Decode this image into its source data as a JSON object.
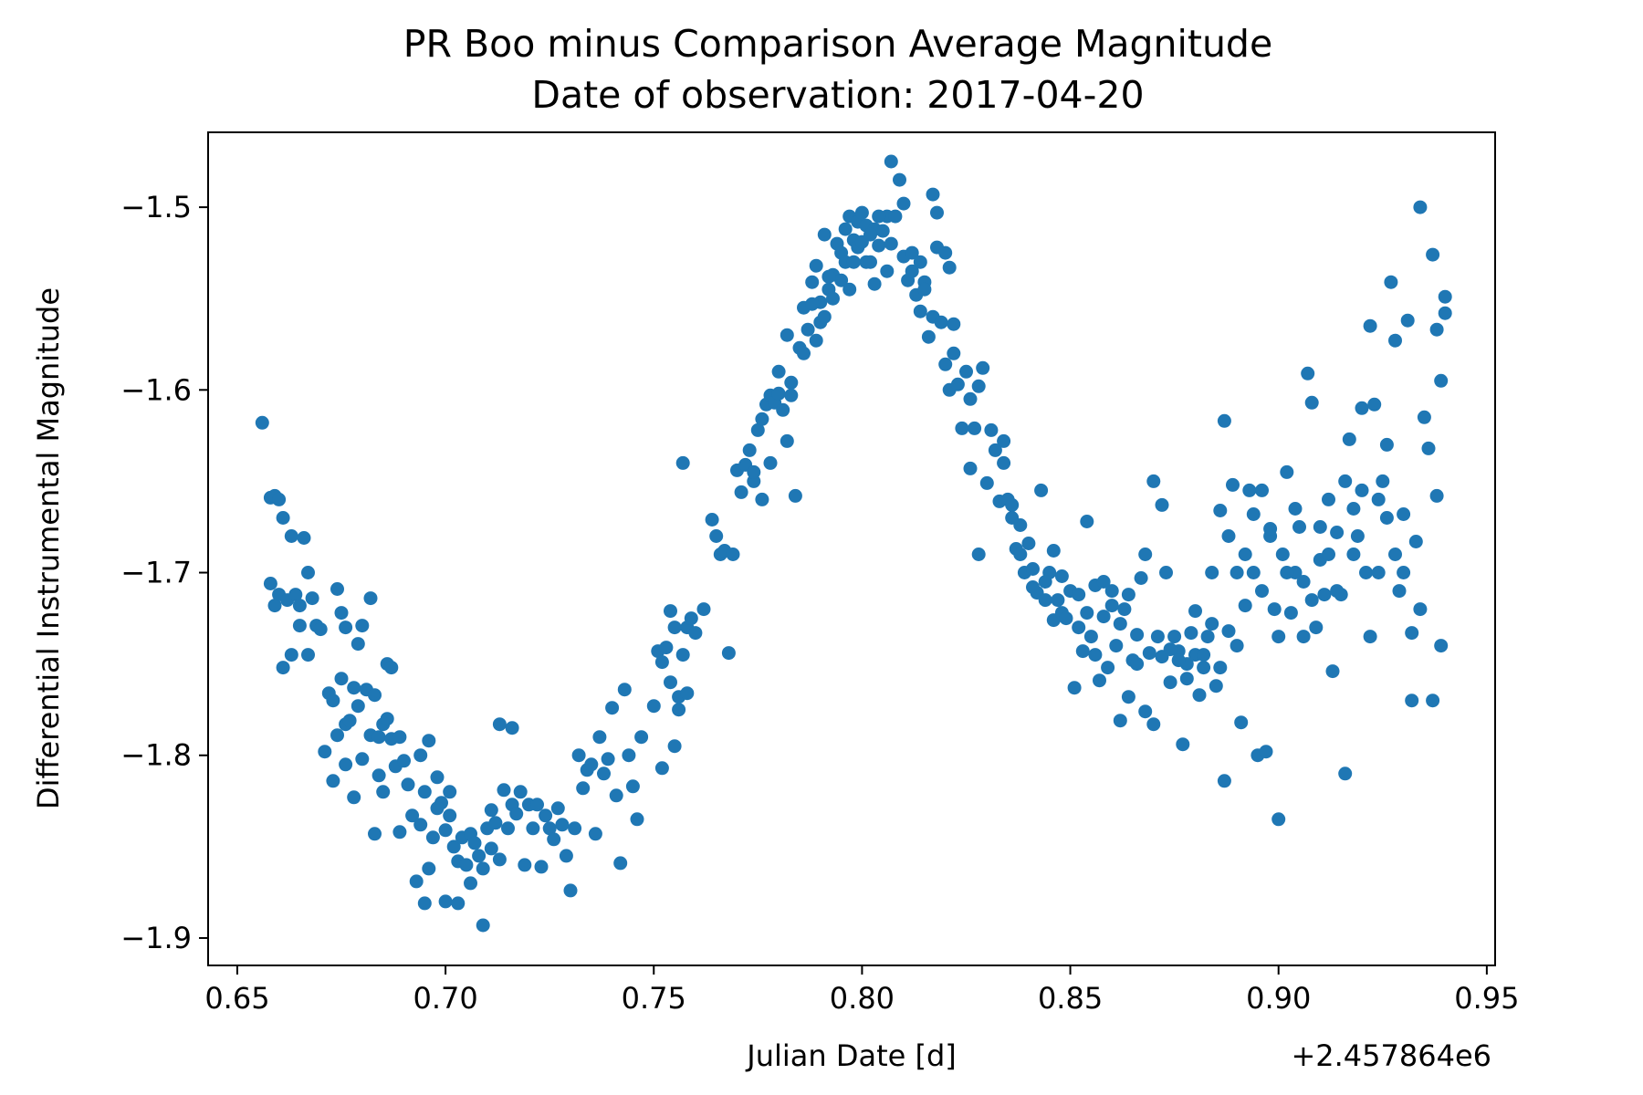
{
  "chart_data": {
    "type": "scatter",
    "title": "PR Boo minus Comparison Average Magnitude",
    "subtitle": "Date of observation: 2017-04-20",
    "xlabel": "Julian Date [d]",
    "ylabel": "Differential Instrumental Magnitude",
    "x_offset_label": "+2.457864e6",
    "xlim": [
      0.643,
      0.952
    ],
    "ylim": [
      -1.459,
      -1.915
    ],
    "y_inverted": true,
    "grid": false,
    "marker_color": "#1f77b4",
    "x_ticks": [
      0.65,
      0.7,
      0.75,
      0.8,
      0.85,
      0.9,
      0.95
    ],
    "x_tick_labels": [
      "0.65",
      "0.70",
      "0.75",
      "0.80",
      "0.85",
      "0.90",
      "0.95"
    ],
    "y_ticks": [
      -1.5,
      -1.6,
      -1.7,
      -1.8,
      -1.9
    ],
    "y_tick_labels": [
      "−1.5",
      "−1.6",
      "−1.7",
      "−1.8",
      "−1.9"
    ],
    "points": [
      [
        0.656,
        -1.618
      ],
      [
        0.658,
        -1.659
      ],
      [
        0.659,
        -1.658
      ],
      [
        0.66,
        -1.66
      ],
      [
        0.661,
        -1.67
      ],
      [
        0.663,
        -1.68
      ],
      [
        0.666,
        -1.681
      ],
      [
        0.658,
        -1.706
      ],
      [
        0.659,
        -1.718
      ],
      [
        0.66,
        -1.712
      ],
      [
        0.662,
        -1.715
      ],
      [
        0.664,
        -1.712
      ],
      [
        0.665,
        -1.718
      ],
      [
        0.667,
        -1.7
      ],
      [
        0.668,
        -1.714
      ],
      [
        0.661,
        -1.752
      ],
      [
        0.663,
        -1.745
      ],
      [
        0.665,
        -1.729
      ],
      [
        0.667,
        -1.745
      ],
      [
        0.669,
        -1.729
      ],
      [
        0.67,
        -1.731
      ],
      [
        0.671,
        -1.798
      ],
      [
        0.672,
        -1.766
      ],
      [
        0.673,
        -1.77
      ],
      [
        0.674,
        -1.789
      ],
      [
        0.675,
        -1.758
      ],
      [
        0.676,
        -1.783
      ],
      [
        0.677,
        -1.781
      ],
      [
        0.678,
        -1.763
      ],
      [
        0.673,
        -1.814
      ],
      [
        0.676,
        -1.805
      ],
      [
        0.678,
        -1.823
      ],
      [
        0.679,
        -1.773
      ],
      [
        0.68,
        -1.802
      ],
      [
        0.681,
        -1.764
      ],
      [
        0.682,
        -1.789
      ],
      [
        0.683,
        -1.767
      ],
      [
        0.684,
        -1.79
      ],
      [
        0.685,
        -1.783
      ],
      [
        0.686,
        -1.78
      ],
      [
        0.687,
        -1.791
      ],
      [
        0.674,
        -1.709
      ],
      [
        0.675,
        -1.722
      ],
      [
        0.676,
        -1.73
      ],
      [
        0.679,
        -1.739
      ],
      [
        0.68,
        -1.729
      ],
      [
        0.682,
        -1.714
      ],
      [
        0.683,
        -1.843
      ],
      [
        0.684,
        -1.811
      ],
      [
        0.686,
        -1.75
      ],
      [
        0.687,
        -1.752
      ],
      [
        0.685,
        -1.82
      ],
      [
        0.688,
        -1.806
      ],
      [
        0.689,
        -1.842
      ],
      [
        0.689,
        -1.79
      ],
      [
        0.69,
        -1.803
      ],
      [
        0.691,
        -1.816
      ],
      [
        0.692,
        -1.833
      ],
      [
        0.693,
        -1.869
      ],
      [
        0.694,
        -1.838
      ],
      [
        0.694,
        -1.8
      ],
      [
        0.695,
        -1.82
      ],
      [
        0.696,
        -1.862
      ],
      [
        0.696,
        -1.792
      ],
      [
        0.697,
        -1.845
      ],
      [
        0.698,
        -1.812
      ],
      [
        0.699,
        -1.826
      ],
      [
        0.7,
        -1.841
      ],
      [
        0.7,
        -1.88
      ],
      [
        0.701,
        -1.833
      ],
      [
        0.702,
        -1.85
      ],
      [
        0.703,
        -1.858
      ],
      [
        0.704,
        -1.845
      ],
      [
        0.705,
        -1.86
      ],
      [
        0.706,
        -1.843
      ],
      [
        0.707,
        -1.848
      ],
      [
        0.708,
        -1.855
      ],
      [
        0.709,
        -1.862
      ],
      [
        0.709,
        -1.893
      ],
      [
        0.71,
        -1.84
      ],
      [
        0.711,
        -1.851
      ],
      [
        0.712,
        -1.837
      ],
      [
        0.713,
        -1.857
      ],
      [
        0.714,
        -1.819
      ],
      [
        0.715,
        -1.84
      ],
      [
        0.716,
        -1.827
      ],
      [
        0.717,
        -1.832
      ],
      [
        0.718,
        -1.82
      ],
      [
        0.719,
        -1.86
      ],
      [
        0.72,
        -1.827
      ],
      [
        0.721,
        -1.84
      ],
      [
        0.722,
        -1.827
      ],
      [
        0.723,
        -1.861
      ],
      [
        0.724,
        -1.833
      ],
      [
        0.725,
        -1.84
      ],
      [
        0.726,
        -1.846
      ],
      [
        0.727,
        -1.829
      ],
      [
        0.728,
        -1.838
      ],
      [
        0.729,
        -1.855
      ],
      [
        0.73,
        -1.874
      ],
      [
        0.731,
        -1.84
      ],
      [
        0.732,
        -1.8
      ],
      [
        0.733,
        -1.818
      ],
      [
        0.734,
        -1.808
      ],
      [
        0.735,
        -1.805
      ],
      [
        0.736,
        -1.843
      ],
      [
        0.737,
        -1.79
      ],
      [
        0.738,
        -1.81
      ],
      [
        0.739,
        -1.802
      ],
      [
        0.74,
        -1.774
      ],
      [
        0.741,
        -1.822
      ],
      [
        0.742,
        -1.859
      ],
      [
        0.743,
        -1.764
      ],
      [
        0.744,
        -1.8
      ],
      [
        0.745,
        -1.817
      ],
      [
        0.746,
        -1.835
      ],
      [
        0.747,
        -1.79
      ],
      [
        0.713,
        -1.783
      ],
      [
        0.716,
        -1.785
      ],
      [
        0.698,
        -1.829
      ],
      [
        0.703,
        -1.881
      ],
      [
        0.695,
        -1.881
      ],
      [
        0.701,
        -1.82
      ],
      [
        0.706,
        -1.87
      ],
      [
        0.711,
        -1.83
      ],
      [
        0.75,
        -1.773
      ],
      [
        0.751,
        -1.743
      ],
      [
        0.752,
        -1.749
      ],
      [
        0.753,
        -1.741
      ],
      [
        0.754,
        -1.721
      ],
      [
        0.755,
        -1.795
      ],
      [
        0.756,
        -1.768
      ],
      [
        0.757,
        -1.745
      ],
      [
        0.757,
        -1.64
      ],
      [
        0.758,
        -1.73
      ],
      [
        0.759,
        -1.725
      ],
      [
        0.76,
        -1.733
      ],
      [
        0.762,
        -1.72
      ],
      [
        0.752,
        -1.807
      ],
      [
        0.754,
        -1.76
      ],
      [
        0.756,
        -1.775
      ],
      [
        0.755,
        -1.73
      ],
      [
        0.758,
        -1.766
      ],
      [
        0.764,
        -1.671
      ],
      [
        0.765,
        -1.68
      ],
      [
        0.766,
        -1.69
      ],
      [
        0.767,
        -1.688
      ],
      [
        0.768,
        -1.744
      ],
      [
        0.769,
        -1.69
      ],
      [
        0.77,
        -1.644
      ],
      [
        0.771,
        -1.656
      ],
      [
        0.772,
        -1.641
      ],
      [
        0.773,
        -1.633
      ],
      [
        0.774,
        -1.65
      ],
      [
        0.775,
        -1.622
      ],
      [
        0.776,
        -1.616
      ],
      [
        0.777,
        -1.608
      ],
      [
        0.778,
        -1.603
      ],
      [
        0.779,
        -1.607
      ],
      [
        0.78,
        -1.602
      ],
      [
        0.781,
        -1.611
      ],
      [
        0.782,
        -1.628
      ],
      [
        0.783,
        -1.603
      ],
      [
        0.784,
        -1.658
      ],
      [
        0.774,
        -1.645
      ],
      [
        0.776,
        -1.66
      ],
      [
        0.778,
        -1.64
      ],
      [
        0.78,
        -1.59
      ],
      [
        0.782,
        -1.57
      ],
      [
        0.785,
        -1.577
      ],
      [
        0.786,
        -1.58
      ],
      [
        0.786,
        -1.555
      ],
      [
        0.787,
        -1.567
      ],
      [
        0.788,
        -1.541
      ],
      [
        0.789,
        -1.573
      ],
      [
        0.789,
        -1.532
      ],
      [
        0.79,
        -1.563
      ],
      [
        0.79,
        -1.552
      ],
      [
        0.791,
        -1.56
      ],
      [
        0.791,
        -1.515
      ],
      [
        0.792,
        -1.545
      ],
      [
        0.793,
        -1.55
      ],
      [
        0.793,
        -1.537
      ],
      [
        0.794,
        -1.52
      ],
      [
        0.795,
        -1.54
      ],
      [
        0.795,
        -1.525
      ],
      [
        0.796,
        -1.53
      ],
      [
        0.797,
        -1.545
      ],
      [
        0.797,
        -1.505
      ],
      [
        0.798,
        -1.518
      ],
      [
        0.799,
        -1.522
      ],
      [
        0.799,
        -1.508
      ],
      [
        0.8,
        -1.519
      ],
      [
        0.8,
        -1.503
      ],
      [
        0.801,
        -1.53
      ],
      [
        0.801,
        -1.51
      ],
      [
        0.802,
        -1.53
      ],
      [
        0.803,
        -1.512
      ],
      [
        0.803,
        -1.542
      ],
      [
        0.804,
        -1.521
      ],
      [
        0.805,
        -1.513
      ],
      [
        0.806,
        -1.505
      ],
      [
        0.807,
        -1.52
      ],
      [
        0.807,
        -1.475
      ],
      [
        0.808,
        -1.505
      ],
      [
        0.809,
        -1.485
      ],
      [
        0.81,
        -1.527
      ],
      [
        0.81,
        -1.498
      ],
      [
        0.811,
        -1.54
      ],
      [
        0.812,
        -1.535
      ],
      [
        0.813,
        -1.548
      ],
      [
        0.814,
        -1.557
      ],
      [
        0.815,
        -1.541
      ],
      [
        0.816,
        -1.571
      ],
      [
        0.817,
        -1.493
      ],
      [
        0.817,
        -1.56
      ],
      [
        0.818,
        -1.503
      ],
      [
        0.818,
        -1.522
      ],
      [
        0.819,
        -1.563
      ],
      [
        0.82,
        -1.586
      ],
      [
        0.821,
        -1.533
      ],
      [
        0.821,
        -1.6
      ],
      [
        0.822,
        -1.564
      ],
      [
        0.823,
        -1.597
      ],
      [
        0.783,
        -1.596
      ],
      [
        0.788,
        -1.553
      ],
      [
        0.792,
        -1.538
      ],
      [
        0.796,
        -1.512
      ],
      [
        0.798,
        -1.53
      ],
      [
        0.802,
        -1.515
      ],
      [
        0.804,
        -1.505
      ],
      [
        0.806,
        -1.535
      ],
      [
        0.812,
        -1.525
      ],
      [
        0.814,
        -1.53
      ],
      [
        0.815,
        -1.545
      ],
      [
        0.82,
        -1.525
      ],
      [
        0.822,
        -1.58
      ],
      [
        0.824,
        -1.621
      ],
      [
        0.825,
        -1.59
      ],
      [
        0.826,
        -1.605
      ],
      [
        0.827,
        -1.621
      ],
      [
        0.828,
        -1.598
      ],
      [
        0.829,
        -1.588
      ],
      [
        0.83,
        -1.651
      ],
      [
        0.831,
        -1.622
      ],
      [
        0.832,
        -1.633
      ],
      [
        0.833,
        -1.661
      ],
      [
        0.834,
        -1.64
      ],
      [
        0.835,
        -1.66
      ],
      [
        0.836,
        -1.663
      ],
      [
        0.837,
        -1.687
      ],
      [
        0.838,
        -1.674
      ],
      [
        0.839,
        -1.7
      ],
      [
        0.84,
        -1.684
      ],
      [
        0.841,
        -1.698
      ],
      [
        0.842,
        -1.711
      ],
      [
        0.843,
        -1.655
      ],
      [
        0.844,
        -1.715
      ],
      [
        0.845,
        -1.7
      ],
      [
        0.846,
        -1.726
      ],
      [
        0.847,
        -1.715
      ],
      [
        0.848,
        -1.722
      ],
      [
        0.849,
        -1.725
      ],
      [
        0.85,
        -1.71
      ],
      [
        0.851,
        -1.763
      ],
      [
        0.852,
        -1.712
      ],
      [
        0.853,
        -1.743
      ],
      [
        0.854,
        -1.722
      ],
      [
        0.855,
        -1.735
      ],
      [
        0.856,
        -1.707
      ],
      [
        0.857,
        -1.759
      ],
      [
        0.858,
        -1.724
      ],
      [
        0.859,
        -1.752
      ],
      [
        0.86,
        -1.71
      ],
      [
        0.861,
        -1.74
      ],
      [
        0.862,
        -1.781
      ],
      [
        0.863,
        -1.72
      ],
      [
        0.864,
        -1.768
      ],
      [
        0.865,
        -1.748
      ],
      [
        0.866,
        -1.734
      ],
      [
        0.867,
        -1.703
      ],
      [
        0.868,
        -1.776
      ],
      [
        0.869,
        -1.744
      ],
      [
        0.87,
        -1.783
      ],
      [
        0.871,
        -1.735
      ],
      [
        0.872,
        -1.746
      ],
      [
        0.873,
        -1.7
      ],
      [
        0.874,
        -1.76
      ],
      [
        0.875,
        -1.735
      ],
      [
        0.876,
        -1.743
      ],
      [
        0.877,
        -1.794
      ],
      [
        0.878,
        -1.75
      ],
      [
        0.879,
        -1.733
      ],
      [
        0.88,
        -1.721
      ],
      [
        0.881,
        -1.767
      ],
      [
        0.882,
        -1.752
      ],
      [
        0.883,
        -1.735
      ],
      [
        0.884,
        -1.7
      ],
      [
        0.885,
        -1.762
      ],
      [
        0.886,
        -1.666
      ],
      [
        0.887,
        -1.617
      ],
      [
        0.887,
        -1.814
      ],
      [
        0.888,
        -1.732
      ],
      [
        0.889,
        -1.652
      ],
      [
        0.89,
        -1.74
      ],
      [
        0.891,
        -1.782
      ],
      [
        0.892,
        -1.69
      ],
      [
        0.893,
        -1.655
      ],
      [
        0.894,
        -1.7
      ],
      [
        0.895,
        -1.8
      ],
      [
        0.896,
        -1.655
      ],
      [
        0.897,
        -1.798
      ],
      [
        0.898,
        -1.68
      ],
      [
        0.899,
        -1.72
      ],
      [
        0.9,
        -1.835
      ],
      [
        0.901,
        -1.69
      ],
      [
        0.902,
        -1.645
      ],
      [
        0.903,
        -1.722
      ],
      [
        0.904,
        -1.7
      ],
      [
        0.905,
        -1.675
      ],
      [
        0.906,
        -1.735
      ],
      [
        0.907,
        -1.591
      ],
      [
        0.908,
        -1.607
      ],
      [
        0.909,
        -1.73
      ],
      [
        0.91,
        -1.693
      ],
      [
        0.911,
        -1.712
      ],
      [
        0.912,
        -1.66
      ],
      [
        0.913,
        -1.754
      ],
      [
        0.914,
        -1.678
      ],
      [
        0.915,
        -1.712
      ],
      [
        0.916,
        -1.81
      ],
      [
        0.917,
        -1.627
      ],
      [
        0.918,
        -1.665
      ],
      [
        0.919,
        -1.68
      ],
      [
        0.92,
        -1.61
      ],
      [
        0.921,
        -1.7
      ],
      [
        0.922,
        -1.565
      ],
      [
        0.923,
        -1.608
      ],
      [
        0.924,
        -1.66
      ],
      [
        0.925,
        -1.65
      ],
      [
        0.926,
        -1.63
      ],
      [
        0.927,
        -1.541
      ],
      [
        0.928,
        -1.573
      ],
      [
        0.929,
        -1.71
      ],
      [
        0.93,
        -1.668
      ],
      [
        0.931,
        -1.562
      ],
      [
        0.932,
        -1.77
      ],
      [
        0.933,
        -1.683
      ],
      [
        0.934,
        -1.5
      ],
      [
        0.935,
        -1.615
      ],
      [
        0.936,
        -1.632
      ],
      [
        0.937,
        -1.526
      ],
      [
        0.937,
        -1.77
      ],
      [
        0.938,
        -1.567
      ],
      [
        0.938,
        -1.658
      ],
      [
        0.939,
        -1.595
      ],
      [
        0.939,
        -1.74
      ],
      [
        0.94,
        -1.558
      ],
      [
        0.94,
        -1.549
      ],
      [
        0.826,
        -1.643
      ],
      [
        0.828,
        -1.69
      ],
      [
        0.834,
        -1.628
      ],
      [
        0.836,
        -1.67
      ],
      [
        0.838,
        -1.69
      ],
      [
        0.841,
        -1.708
      ],
      [
        0.844,
        -1.705
      ],
      [
        0.846,
        -1.688
      ],
      [
        0.848,
        -1.702
      ],
      [
        0.852,
        -1.73
      ],
      [
        0.854,
        -1.672
      ],
      [
        0.856,
        -1.745
      ],
      [
        0.858,
        -1.705
      ],
      [
        0.86,
        -1.718
      ],
      [
        0.862,
        -1.728
      ],
      [
        0.864,
        -1.712
      ],
      [
        0.866,
        -1.75
      ],
      [
        0.868,
        -1.69
      ],
      [
        0.87,
        -1.65
      ],
      [
        0.872,
        -1.663
      ],
      [
        0.874,
        -1.742
      ],
      [
        0.876,
        -1.748
      ],
      [
        0.878,
        -1.758
      ],
      [
        0.88,
        -1.745
      ],
      [
        0.882,
        -1.745
      ],
      [
        0.884,
        -1.728
      ],
      [
        0.886,
        -1.752
      ],
      [
        0.888,
        -1.68
      ],
      [
        0.89,
        -1.7
      ],
      [
        0.892,
        -1.718
      ],
      [
        0.894,
        -1.668
      ],
      [
        0.896,
        -1.71
      ],
      [
        0.898,
        -1.676
      ],
      [
        0.9,
        -1.735
      ],
      [
        0.902,
        -1.7
      ],
      [
        0.904,
        -1.665
      ],
      [
        0.906,
        -1.705
      ],
      [
        0.908,
        -1.715
      ],
      [
        0.91,
        -1.675
      ],
      [
        0.912,
        -1.69
      ],
      [
        0.914,
        -1.71
      ],
      [
        0.916,
        -1.65
      ],
      [
        0.918,
        -1.69
      ],
      [
        0.92,
        -1.655
      ],
      [
        0.922,
        -1.735
      ],
      [
        0.924,
        -1.7
      ],
      [
        0.926,
        -1.67
      ],
      [
        0.928,
        -1.69
      ],
      [
        0.93,
        -1.7
      ],
      [
        0.932,
        -1.733
      ],
      [
        0.934,
        -1.72
      ]
    ]
  }
}
